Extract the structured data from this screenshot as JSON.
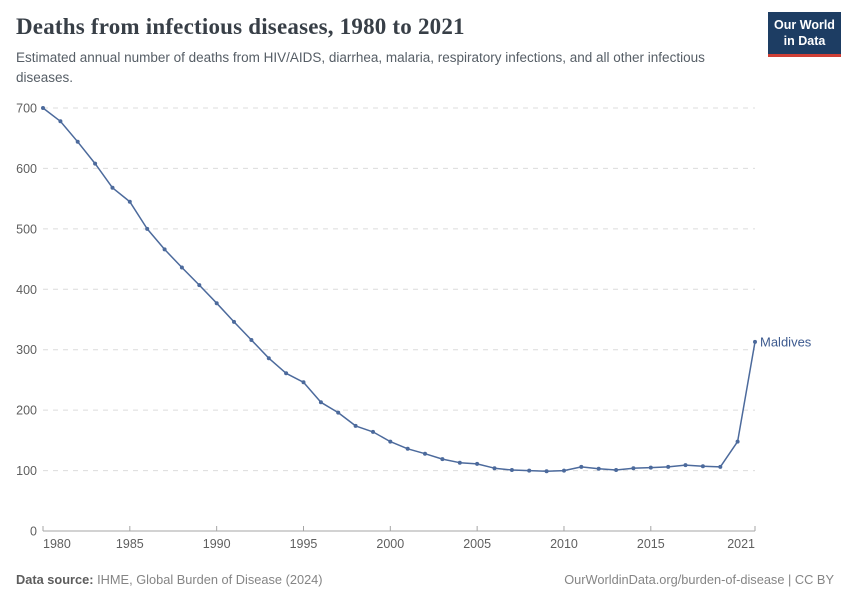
{
  "header": {
    "title": "Deaths from infectious diseases, 1980 to 2021",
    "subtitle": "Estimated annual number of deaths from HIV/AIDS, diarrhea, malaria, respiratory infections, and all other infectious diseases.",
    "logo_line1": "Our World",
    "logo_line2": "in Data",
    "logo_bg": "#1d3d63",
    "logo_accent": "#cf3f36"
  },
  "chart_data": {
    "type": "line",
    "title": "Deaths from infectious diseases, 1980 to 2021",
    "xlabel": "",
    "ylabel": "",
    "xlim": [
      1980,
      2021
    ],
    "ylim": [
      0,
      700
    ],
    "x_ticks": [
      1980,
      1985,
      1990,
      1995,
      2000,
      2005,
      2010,
      2015,
      2021
    ],
    "y_ticks": [
      0,
      100,
      200,
      300,
      400,
      500,
      600,
      700
    ],
    "grid": "horizontal-dashed",
    "grid_color": "#dcdcdc",
    "axis_color": "#a5a5a5",
    "tick_label_color": "#5f5f5f",
    "series": [
      {
        "name": "Maldives",
        "color": "#4c6a9c",
        "label_color": "#3d5a8f",
        "x": [
          1980,
          1981,
          1982,
          1983,
          1984,
          1985,
          1986,
          1987,
          1988,
          1989,
          1990,
          1991,
          1992,
          1993,
          1994,
          1995,
          1996,
          1997,
          1998,
          1999,
          2000,
          2001,
          2002,
          2003,
          2004,
          2005,
          2006,
          2007,
          2008,
          2009,
          2010,
          2011,
          2012,
          2013,
          2014,
          2015,
          2016,
          2017,
          2018,
          2019,
          2020,
          2021
        ],
        "values": [
          700,
          678,
          644,
          608,
          568,
          545,
          500,
          466,
          436,
          407,
          377,
          346,
          316,
          286,
          261,
          246,
          213,
          196,
          174,
          164,
          148,
          136,
          128,
          119,
          113,
          111,
          104,
          101,
          100,
          99,
          100,
          106,
          103,
          101,
          104,
          105,
          106,
          109,
          107,
          106,
          148,
          313
        ]
      }
    ],
    "end_label": "Maldives",
    "legend_position": "end-of-line"
  },
  "footer": {
    "source_label": "Data source:",
    "source_text": " IHME, Global Burden of Disease (2024)",
    "rights": "OurWorldinData.org/burden-of-disease | CC BY"
  }
}
